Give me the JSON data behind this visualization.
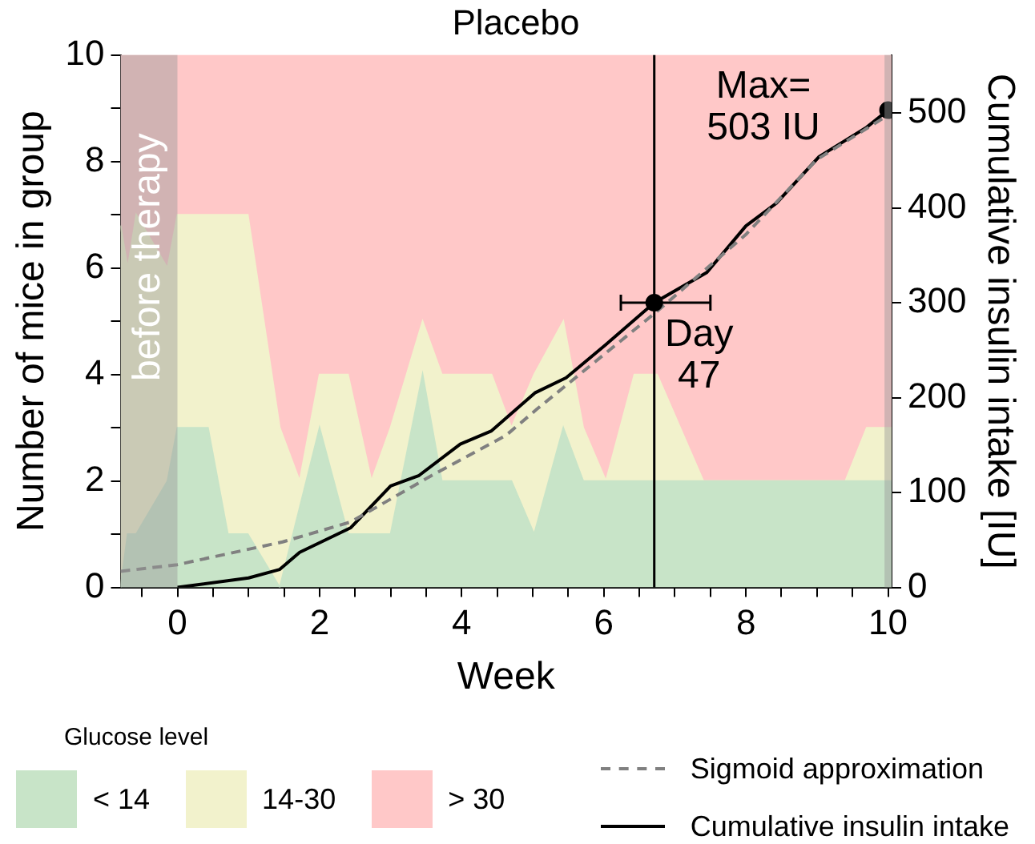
{
  "chart_data": {
    "type": "area",
    "title": "Placebo",
    "xlabel": "Week",
    "ylabel": "Number of mice in group",
    "y2label": "Cumulative insulin intake [IU]",
    "legend_title": "Glucose level",
    "legend": "bottom",
    "stacked": true,
    "x": [
      -0.8,
      -0.7,
      -0.58,
      -0.14,
      0,
      0.43,
      0.71,
      0.99,
      1.44,
      1.72,
      2.0,
      2.4,
      2.73,
      3.0,
      3.45,
      3.72,
      4.42,
      4.7,
      5.02,
      5.43,
      5.71,
      6.03,
      6.43,
      6.75,
      7.4,
      9.4,
      9.7,
      10.05
    ],
    "xlim": [
      -0.8,
      10.05
    ],
    "xticks": [
      {
        "value": -0.5,
        "label": null
      },
      0,
      {
        "value": 0.5,
        "label": null
      },
      {
        "value": 1,
        "label": null
      },
      {
        "value": 1.5,
        "label": null
      },
      2,
      {
        "value": 2.5,
        "label": null
      },
      {
        "value": 3,
        "label": null
      },
      {
        "value": 3.5,
        "label": null
      },
      4,
      {
        "value": 4.5,
        "label": null
      },
      {
        "value": 5,
        "label": null
      },
      {
        "value": 5.5,
        "label": null
      },
      6,
      {
        "value": 6.5,
        "label": null
      },
      {
        "value": 7,
        "label": null
      },
      {
        "value": 7.5,
        "label": null
      },
      8,
      {
        "value": 8.5,
        "label": null
      },
      {
        "value": 9,
        "label": null
      },
      {
        "value": 9.5,
        "label": null
      },
      10
    ],
    "ylim": [
      0,
      10
    ],
    "yticks": [
      0,
      {
        "value": 1,
        "label": null
      },
      2,
      {
        "value": 3,
        "label": null
      },
      4,
      {
        "value": 5,
        "label": null
      },
      6,
      {
        "value": 7,
        "label": null
      },
      8,
      {
        "value": 9,
        "label": null
      },
      10
    ],
    "y2lim": [
      0,
      561
    ],
    "y2ticks": [
      0,
      100,
      200,
      300,
      400,
      500
    ],
    "series": [
      {
        "name": "< 14",
        "color": "#c8e4c8",
        "values": [
          0,
          1,
          1,
          2,
          3,
          3,
          1,
          1,
          0,
          1.5,
          3,
          1,
          1,
          1,
          4,
          2,
          2,
          2,
          1,
          3,
          2,
          2,
          2,
          2,
          2,
          2,
          2,
          2
        ]
      },
      {
        "name": "14-30",
        "color": "#f2f2cc",
        "values": [
          6.8,
          5,
          6,
          4,
          4,
          4,
          6,
          6,
          3,
          0.5,
          1,
          3,
          1,
          2,
          1,
          2,
          2,
          1,
          3,
          2,
          1,
          0,
          2,
          2,
          0,
          0,
          1,
          1
        ]
      },
      {
        "name": "> 30",
        "color": "#ffc8c8",
        "values": [
          3.2,
          4,
          3,
          4,
          3,
          3,
          3,
          3,
          7,
          8,
          6,
          6,
          8,
          7,
          5,
          6,
          6,
          7,
          6,
          5,
          7,
          8,
          6,
          6,
          8,
          8,
          7,
          7
        ]
      },
      {
        "name": "Sigmoid approximation",
        "type": "line",
        "axis": "y2",
        "color": "#808080",
        "line_style": "dashed",
        "marker": "none",
        "x": [
          -0.8,
          0,
          1.48,
          2.44,
          3.53,
          4.62,
          5.06,
          6.75,
          8.0,
          9.0,
          9.9,
          10.05
        ],
        "values": [
          17,
          24,
          48,
          69,
          116,
          160,
          188,
          291,
          372,
          451,
          493,
          500
        ]
      },
      {
        "name": "Cumulative insulin intake",
        "type": "line",
        "axis": "y2",
        "color": "#000000",
        "line_style": "solid",
        "marker": "none",
        "x": [
          0,
          1,
          1.44,
          1.72,
          2.44,
          3.0,
          3.4,
          3.98,
          4.42,
          5.03,
          5.47,
          6.03,
          6.71,
          7.45,
          8.0,
          8.43,
          9.03,
          9.7,
          10.0
        ],
        "values": [
          0,
          10,
          19,
          37,
          63,
          107,
          118,
          151,
          165,
          205,
          221,
          256,
          300,
          332,
          381,
          405,
          454,
          485,
          503
        ]
      },
      {
        "type": "scatter",
        "axis": "y2",
        "color": "#000000",
        "marker": "circle",
        "x": [
          6.71,
          10.0
        ],
        "values": [
          300,
          503
        ],
        "xerrors": [
          [
            6.24,
            7.5
          ],
          null
        ]
      }
    ],
    "bands": [
      {
        "axis": "x",
        "from": -0.8,
        "to": 0,
        "label": "before therapy",
        "color": "#999999"
      },
      {
        "axis": "x",
        "from": 9.95,
        "to": 10.05,
        "color": "#999999"
      }
    ],
    "ref_lines": [
      {
        "axis": "x",
        "value": 6.71,
        "label": "Day 47",
        "color": "#000000"
      }
    ],
    "annotations": [
      "Max=\n503 IU"
    ]
  }
}
